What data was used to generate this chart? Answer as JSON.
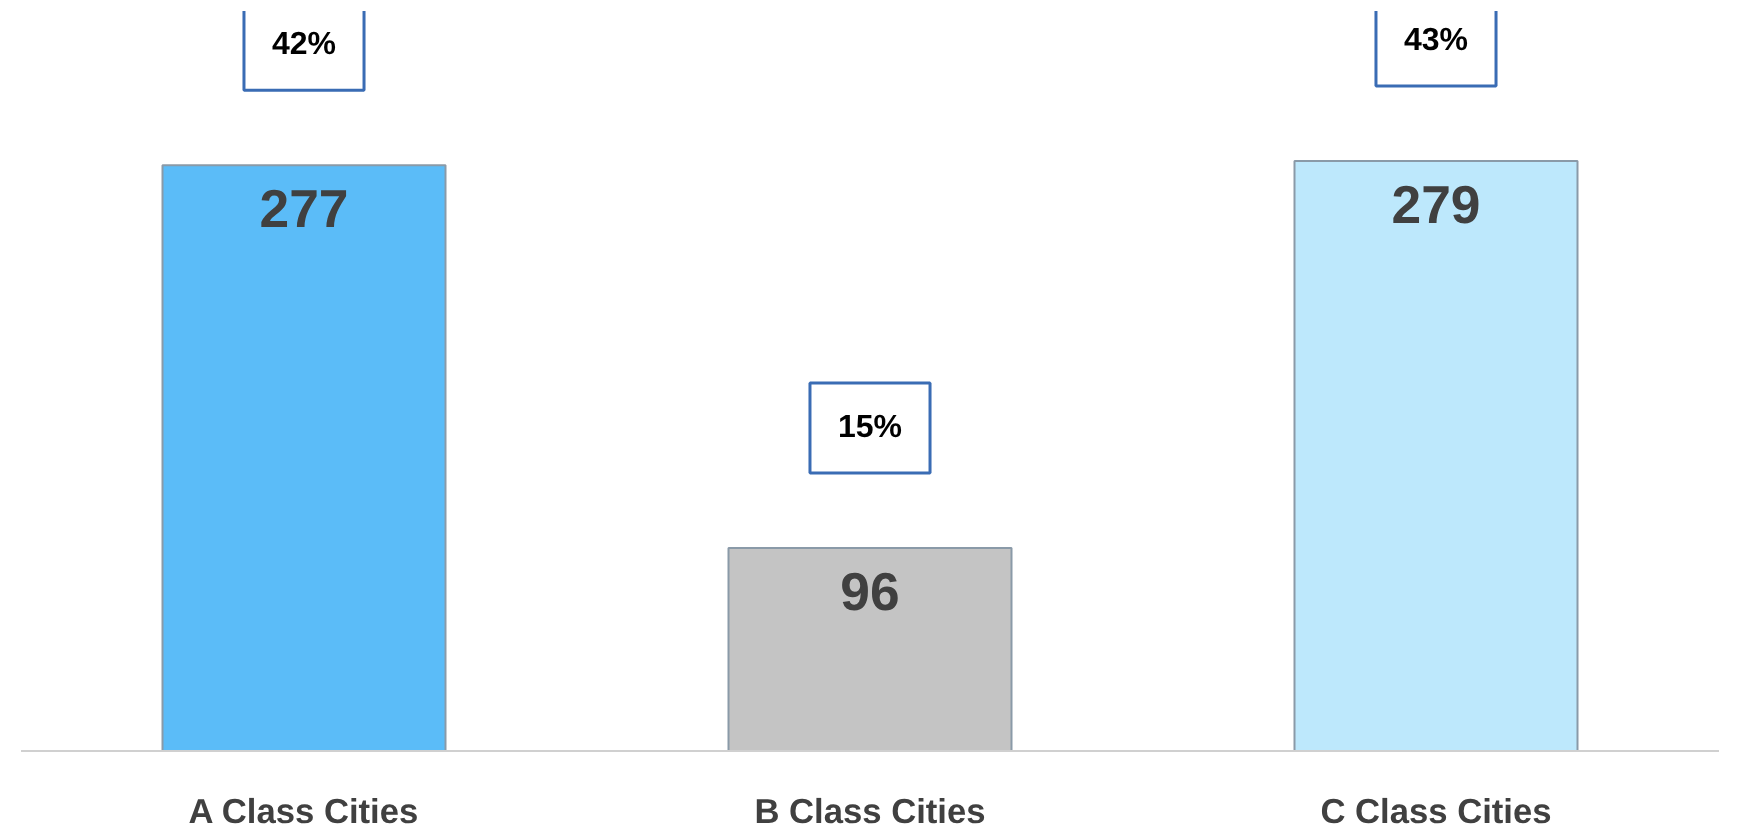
{
  "chart_data": {
    "type": "bar",
    "categories": [
      "A Class Cities",
      "B Class Cities",
      "C Class Cities"
    ],
    "values": [
      277,
      96,
      279
    ],
    "colors": [
      "#5bbcf8",
      "#c4c4c4",
      "#bde8fc"
    ],
    "data_labels": true,
    "grid": false,
    "annotations": [
      "42%",
      "15%",
      "43%"
    ]
  }
}
